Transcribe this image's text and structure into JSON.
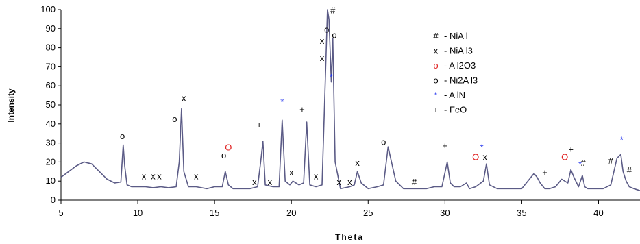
{
  "chart_data": {
    "type": "line",
    "title": "",
    "xlabel": "Theta",
    "ylabel": "Intensity",
    "xlim": [
      5,
      42.7
    ],
    "ylim": [
      0,
      100
    ],
    "x_ticks": [
      "5",
      "10",
      "15",
      "20",
      "25",
      "30",
      "35",
      "40"
    ],
    "y_ticks": [
      "0",
      "10",
      "20",
      "30",
      "40",
      "50",
      "60",
      "70",
      "80",
      "90",
      "100"
    ],
    "grid": false,
    "legend_position": "top-right",
    "line_color": "#5b5b86",
    "series": [
      {
        "x": [
          5.0,
          5.5,
          6.0,
          6.5,
          7.0,
          7.5,
          8.0,
          8.5,
          8.9,
          9.05,
          9.15,
          9.3,
          9.6,
          10.0,
          10.5,
          11.0,
          11.5,
          12.0,
          12.5,
          12.7,
          12.85,
          13.0,
          13.3,
          13.8,
          14.5,
          15.0,
          15.5,
          15.7,
          15.9,
          16.2,
          16.8,
          17.3,
          17.8,
          18.0,
          18.15,
          18.3,
          18.8,
          19.2,
          19.4,
          19.6,
          19.9,
          20.1,
          20.5,
          20.8,
          21.0,
          21.2,
          21.6,
          22.0,
          22.2,
          22.35,
          22.45,
          22.6,
          22.7,
          22.85,
          23.2,
          23.8,
          24.1,
          24.3,
          24.55,
          25.0,
          25.6,
          26.0,
          26.3,
          26.8,
          27.3,
          27.8,
          28.2,
          28.8,
          29.3,
          29.8,
          30.15,
          30.35,
          30.6,
          31.0,
          31.4,
          31.6,
          32.0,
          32.5,
          32.7,
          32.9,
          33.4,
          34.0,
          34.5,
          35.0,
          35.5,
          35.8,
          36.0,
          36.2,
          36.5,
          36.8,
          37.2,
          37.6,
          38.0,
          38.2,
          38.4,
          38.7,
          38.95,
          39.1,
          39.3,
          39.8,
          40.3,
          40.8,
          41.2,
          41.45,
          41.6,
          41.8,
          42.0,
          42.3,
          42.7
        ],
        "y": [
          12,
          15,
          18,
          20,
          19,
          15,
          11,
          9,
          9.5,
          29,
          18,
          8,
          7,
          7,
          7,
          6.5,
          7,
          6.5,
          7,
          20,
          48,
          15,
          7,
          7,
          6,
          7,
          7,
          15,
          8,
          6,
          6,
          6,
          7,
          20,
          31,
          8,
          7,
          7,
          42,
          10,
          8,
          10,
          8,
          9,
          41,
          8,
          7,
          8,
          60,
          100,
          95,
          62,
          85,
          20,
          6,
          7,
          8,
          15,
          9,
          6,
          7,
          8,
          28,
          10,
          6,
          6,
          6,
          6,
          7,
          7,
          20,
          9,
          7,
          7,
          9,
          6,
          7,
          10,
          19,
          8,
          6,
          6,
          6,
          6,
          11,
          14,
          12,
          9,
          6,
          6,
          7,
          11,
          9,
          16,
          12,
          7,
          13,
          7,
          6,
          6,
          6,
          8,
          22,
          24,
          15,
          10,
          7,
          6,
          5
        ]
      }
    ],
    "annotations": [
      {
        "text": "o",
        "x": 9.0,
        "y": 32,
        "color": "#000000"
      },
      {
        "text": "x",
        "x": 10.4,
        "y": 11,
        "color": "#000000"
      },
      {
        "text": "x",
        "x": 11.0,
        "y": 11,
        "color": "#000000"
      },
      {
        "text": "x",
        "x": 11.4,
        "y": 11,
        "color": "#000000"
      },
      {
        "text": "o",
        "x": 12.4,
        "y": 41,
        "color": "#000000"
      },
      {
        "text": "x",
        "x": 13.0,
        "y": 52,
        "color": "#000000"
      },
      {
        "text": "x",
        "x": 13.8,
        "y": 11,
        "color": "#000000"
      },
      {
        "text": "o",
        "x": 15.6,
        "y": 22,
        "color": "#000000"
      },
      {
        "text": "O",
        "x": 15.9,
        "y": 26,
        "color": "#e02020"
      },
      {
        "text": "x",
        "x": 17.6,
        "y": 8,
        "color": "#000000"
      },
      {
        "text": "+",
        "x": 17.9,
        "y": 38,
        "color": "#000000"
      },
      {
        "text": "x",
        "x": 18.6,
        "y": 8,
        "color": "#000000"
      },
      {
        "text": "*",
        "x": 19.4,
        "y": 50,
        "color": "#2233ee"
      },
      {
        "text": "x",
        "x": 20.0,
        "y": 13,
        "color": "#000000"
      },
      {
        "text": "+",
        "x": 20.7,
        "y": 46,
        "color": "#000000"
      },
      {
        "text": "x",
        "x": 21.6,
        "y": 11,
        "color": "#000000"
      },
      {
        "text": "x",
        "x": 22.0,
        "y": 82,
        "color": "#000000"
      },
      {
        "text": "x",
        "x": 22.0,
        "y": 73,
        "color": "#000000"
      },
      {
        "text": "o",
        "x": 22.3,
        "y": 88,
        "color": "#000000"
      },
      {
        "text": "#",
        "x": 22.7,
        "y": 98,
        "color": "#000000"
      },
      {
        "text": "o",
        "x": 22.8,
        "y": 85,
        "color": "#000000"
      },
      {
        "text": "*",
        "x": 22.6,
        "y": 63,
        "color": "#2233ee"
      },
      {
        "text": "x",
        "x": 23.1,
        "y": 8,
        "color": "#000000"
      },
      {
        "text": "x",
        "x": 23.8,
        "y": 8,
        "color": "#000000"
      },
      {
        "text": "x",
        "x": 24.3,
        "y": 18,
        "color": "#000000"
      },
      {
        "text": "o",
        "x": 26.0,
        "y": 29,
        "color": "#000000"
      },
      {
        "text": "#",
        "x": 28.0,
        "y": 8,
        "color": "#000000"
      },
      {
        "text": "+",
        "x": 30.0,
        "y": 27,
        "color": "#000000"
      },
      {
        "text": "O",
        "x": 32.0,
        "y": 21,
        "color": "#e02020"
      },
      {
        "text": "*",
        "x": 32.4,
        "y": 26,
        "color": "#2233ee"
      },
      {
        "text": "x",
        "x": 32.6,
        "y": 21,
        "color": "#000000"
      },
      {
        "text": "+",
        "x": 36.5,
        "y": 13,
        "color": "#000000"
      },
      {
        "text": "O",
        "x": 37.8,
        "y": 21,
        "color": "#e02020"
      },
      {
        "text": "+",
        "x": 38.2,
        "y": 25,
        "color": "#000000"
      },
      {
        "text": "*",
        "x": 38.8,
        "y": 17,
        "color": "#2233ee"
      },
      {
        "text": "#",
        "x": 39.0,
        "y": 18,
        "color": "#000000"
      },
      {
        "text": "#",
        "x": 40.8,
        "y": 19,
        "color": "#000000"
      },
      {
        "text": "*",
        "x": 41.5,
        "y": 30,
        "color": "#2233ee"
      },
      {
        "text": "#",
        "x": 42.0,
        "y": 14,
        "color": "#000000"
      }
    ],
    "legend": [
      {
        "symbol": "#",
        "label": "- NiA l",
        "color": "#000000"
      },
      {
        "symbol": "x",
        "label": "- NiA l3",
        "color": "#000000"
      },
      {
        "symbol": "o",
        "label": "- A l2O3",
        "color": "#e02020"
      },
      {
        "symbol": "o",
        "label": "- Ni2A l3",
        "color": "#000000"
      },
      {
        "symbol": "*",
        "label": " -  A lN",
        "color": "#2233ee"
      },
      {
        "symbol": "+",
        "label": "- FeO",
        "color": "#000000"
      }
    ]
  }
}
